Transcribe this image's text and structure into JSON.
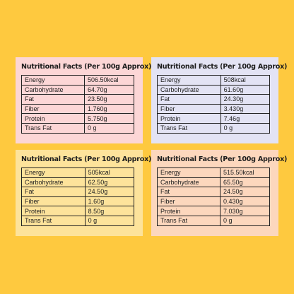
{
  "colors": {
    "background": "#fec93f",
    "card_pink": "#fcd6d6",
    "card_lavender": "#e3e3f4",
    "card_yellow": "#fde39b",
    "card_peach": "#fcd7bd",
    "text": "#222222"
  },
  "cards": [
    {
      "title": "Nutritional Facts (Per 100g Approx)",
      "rows": [
        {
          "label": "Energy",
          "value": "506.50kcal"
        },
        {
          "label": "Carbohydrate",
          "value": "64.70g"
        },
        {
          "label": "Fat",
          "value": "23.50g"
        },
        {
          "label": "Fiber",
          "value": "1.760g"
        },
        {
          "label": "Protein",
          "value": "5.750g"
        },
        {
          "label": "Trans Fat",
          "value": "0 g"
        }
      ]
    },
    {
      "title": "Nutritional Facts (Per 100g Approx)",
      "rows": [
        {
          "label": "Energy",
          "value": "508kcal"
        },
        {
          "label": "Carbohydrate",
          "value": "61.60g"
        },
        {
          "label": "Fat",
          "value": "24.30g"
        },
        {
          "label": "Fiber",
          "value": "3.430g"
        },
        {
          "label": "Protein",
          "value": "7.46g"
        },
        {
          "label": "Trans Fat",
          "value": "0 g"
        }
      ]
    },
    {
      "title": "Nutritional Facts (Per 100g Approx)",
      "rows": [
        {
          "label": "Energy",
          "value": "505kcal"
        },
        {
          "label": "Carbohydrate",
          "value": "62.50g"
        },
        {
          "label": "Fat",
          "value": "24.50g"
        },
        {
          "label": "Fiber",
          "value": "1.60g"
        },
        {
          "label": "Protein",
          "value": "8.50g"
        },
        {
          "label": "Trans Fat",
          "value": "0 g"
        }
      ]
    },
    {
      "title": "Nutritional Facts (Per 100g Approx)",
      "rows": [
        {
          "label": "Energy",
          "value": "515.50kcal"
        },
        {
          "label": "Carbohydrate",
          "value": "65.50g"
        },
        {
          "label": "Fat",
          "value": "24.50g"
        },
        {
          "label": "Fiber",
          "value": "0.430g"
        },
        {
          "label": "Protein",
          "value": "7.030g"
        },
        {
          "label": "Trans Fat",
          "value": "0 g"
        }
      ]
    }
  ]
}
